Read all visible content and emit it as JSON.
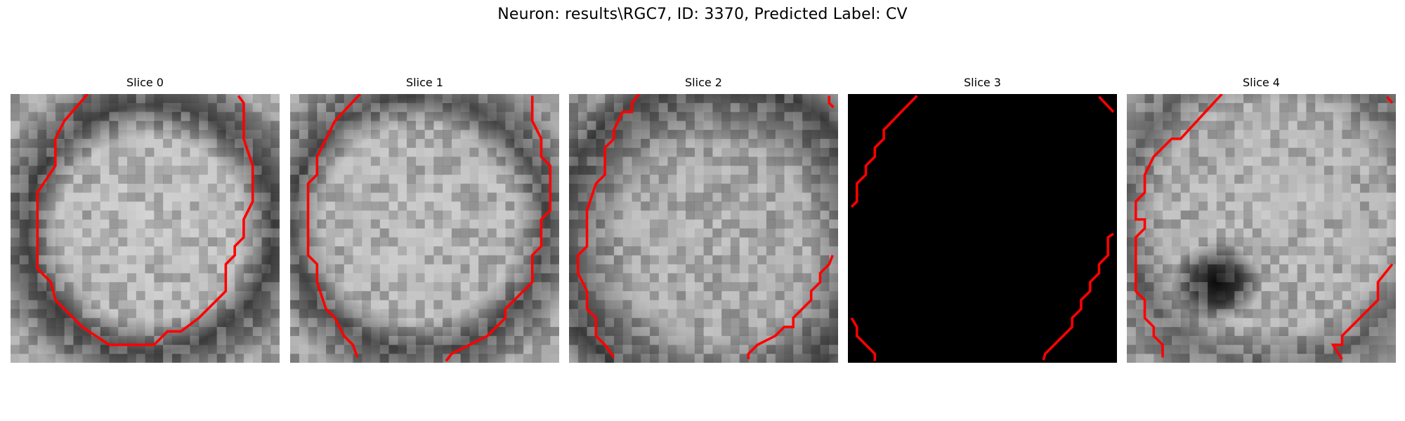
{
  "figure": {
    "title": "Neuron: results\\RGC7, ID: 3370, Predicted Label: CV"
  },
  "panels": [
    {
      "title": "Slice 0",
      "image": "grayscale-microscopy-slice",
      "contour_color": "#ff0000"
    },
    {
      "title": "Slice 1",
      "image": "grayscale-microscopy-slice",
      "contour_color": "#ff0000"
    },
    {
      "title": "Slice 2",
      "image": "grayscale-microscopy-slice",
      "contour_color": "#ff0000"
    },
    {
      "title": "Slice 3",
      "image": "black-empty-slice",
      "contour_color": "#ff0000"
    },
    {
      "title": "Slice 4",
      "image": "grayscale-microscopy-slice",
      "contour_color": "#ff0000"
    }
  ]
}
